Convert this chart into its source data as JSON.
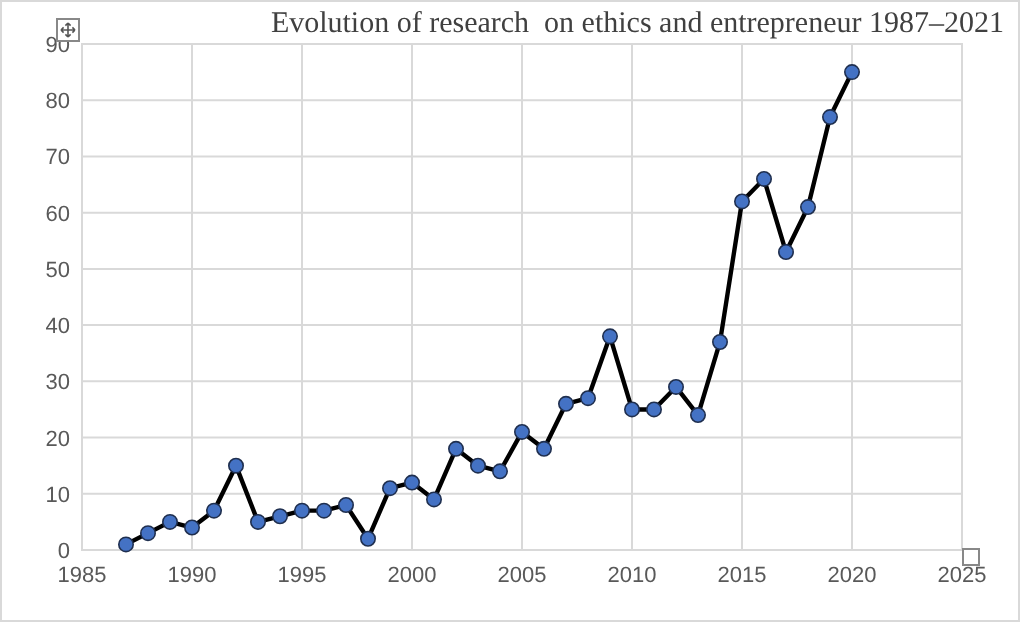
{
  "chart_data": {
    "type": "line",
    "title": "Evolution of research  on ethics and entrepreneur 1987–2021",
    "x": [
      1987,
      1988,
      1989,
      1990,
      1991,
      1992,
      1993,
      1994,
      1995,
      1996,
      1997,
      1998,
      1999,
      2000,
      2001,
      2002,
      2003,
      2004,
      2005,
      2006,
      2007,
      2008,
      2009,
      2010,
      2011,
      2012,
      2013,
      2014,
      2015,
      2016,
      2017,
      2018,
      2019,
      2020
    ],
    "series": [
      {
        "color": "#4472c4",
        "values": [
          1,
          3,
          5,
          4,
          7,
          15,
          5,
          6,
          7,
          7,
          8,
          2,
          11,
          12,
          9,
          18,
          15,
          14,
          21,
          18,
          26,
          27,
          38,
          25,
          25,
          29,
          24,
          37,
          62,
          66,
          53,
          61,
          77,
          85
        ]
      }
    ],
    "xlim": [
      1985,
      2025
    ],
    "xticks": [
      1985,
      1990,
      1995,
      2000,
      2005,
      2010,
      2015,
      2020,
      2025
    ],
    "ylim": [
      0,
      90
    ],
    "yticks": [
      0,
      10,
      20,
      30,
      40,
      50,
      60,
      70,
      80,
      90
    ],
    "grid": true,
    "marker": "circle",
    "line_style": "solid"
  }
}
